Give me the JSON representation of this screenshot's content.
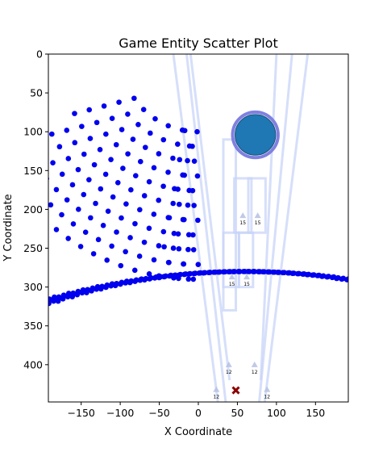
{
  "chart_data": {
    "type": "scatter",
    "title": "Game Entity Scatter Plot",
    "xlabel": "X Coordinate",
    "ylabel": "Y Coordinate",
    "xlim": [
      -192,
      192
    ],
    "ylim": [
      448,
      0
    ],
    "y_inverted": true,
    "grid": false,
    "x_ticks": [
      -150,
      -100,
      -50,
      0,
      50,
      100,
      150
    ],
    "y_ticks": [
      0,
      50,
      100,
      150,
      200,
      250,
      300,
      350,
      400
    ],
    "colors": {
      "dots": "#0000ee",
      "big_circle_fill": "#1f77b4",
      "big_circle_ring": "#8080e0",
      "overlay": "#c8d4f8",
      "triangle": "#b8c4e4",
      "cross": "#8b0000"
    },
    "big_circle": {
      "x": 73,
      "y": 104,
      "radius_data": 26
    },
    "cross_marker": {
      "x": 48,
      "y": 433
    },
    "triangles": [
      {
        "x": 57,
        "y": 208,
        "label": "15"
      },
      {
        "x": 76,
        "y": 208,
        "label": "15"
      },
      {
        "x": 43,
        "y": 287,
        "label": "15"
      },
      {
        "x": 62,
        "y": 287,
        "label": "15"
      },
      {
        "x": 39,
        "y": 400,
        "label": "12"
      },
      {
        "x": 72,
        "y": 400,
        "label": "12"
      },
      {
        "x": 23,
        "y": 432,
        "label": "12"
      },
      {
        "x": 88,
        "y": 432,
        "label": "12"
      }
    ],
    "dot_field": {
      "center": [
        0,
        0
      ],
      "inner_radius_data": 100,
      "angle_range_deg": [
        80,
        155
      ],
      "row_spacing": 19,
      "bottom_arc": {
        "center": [
          60,
          1050
        ],
        "radius": 770,
        "top_y": 275
      }
    }
  }
}
